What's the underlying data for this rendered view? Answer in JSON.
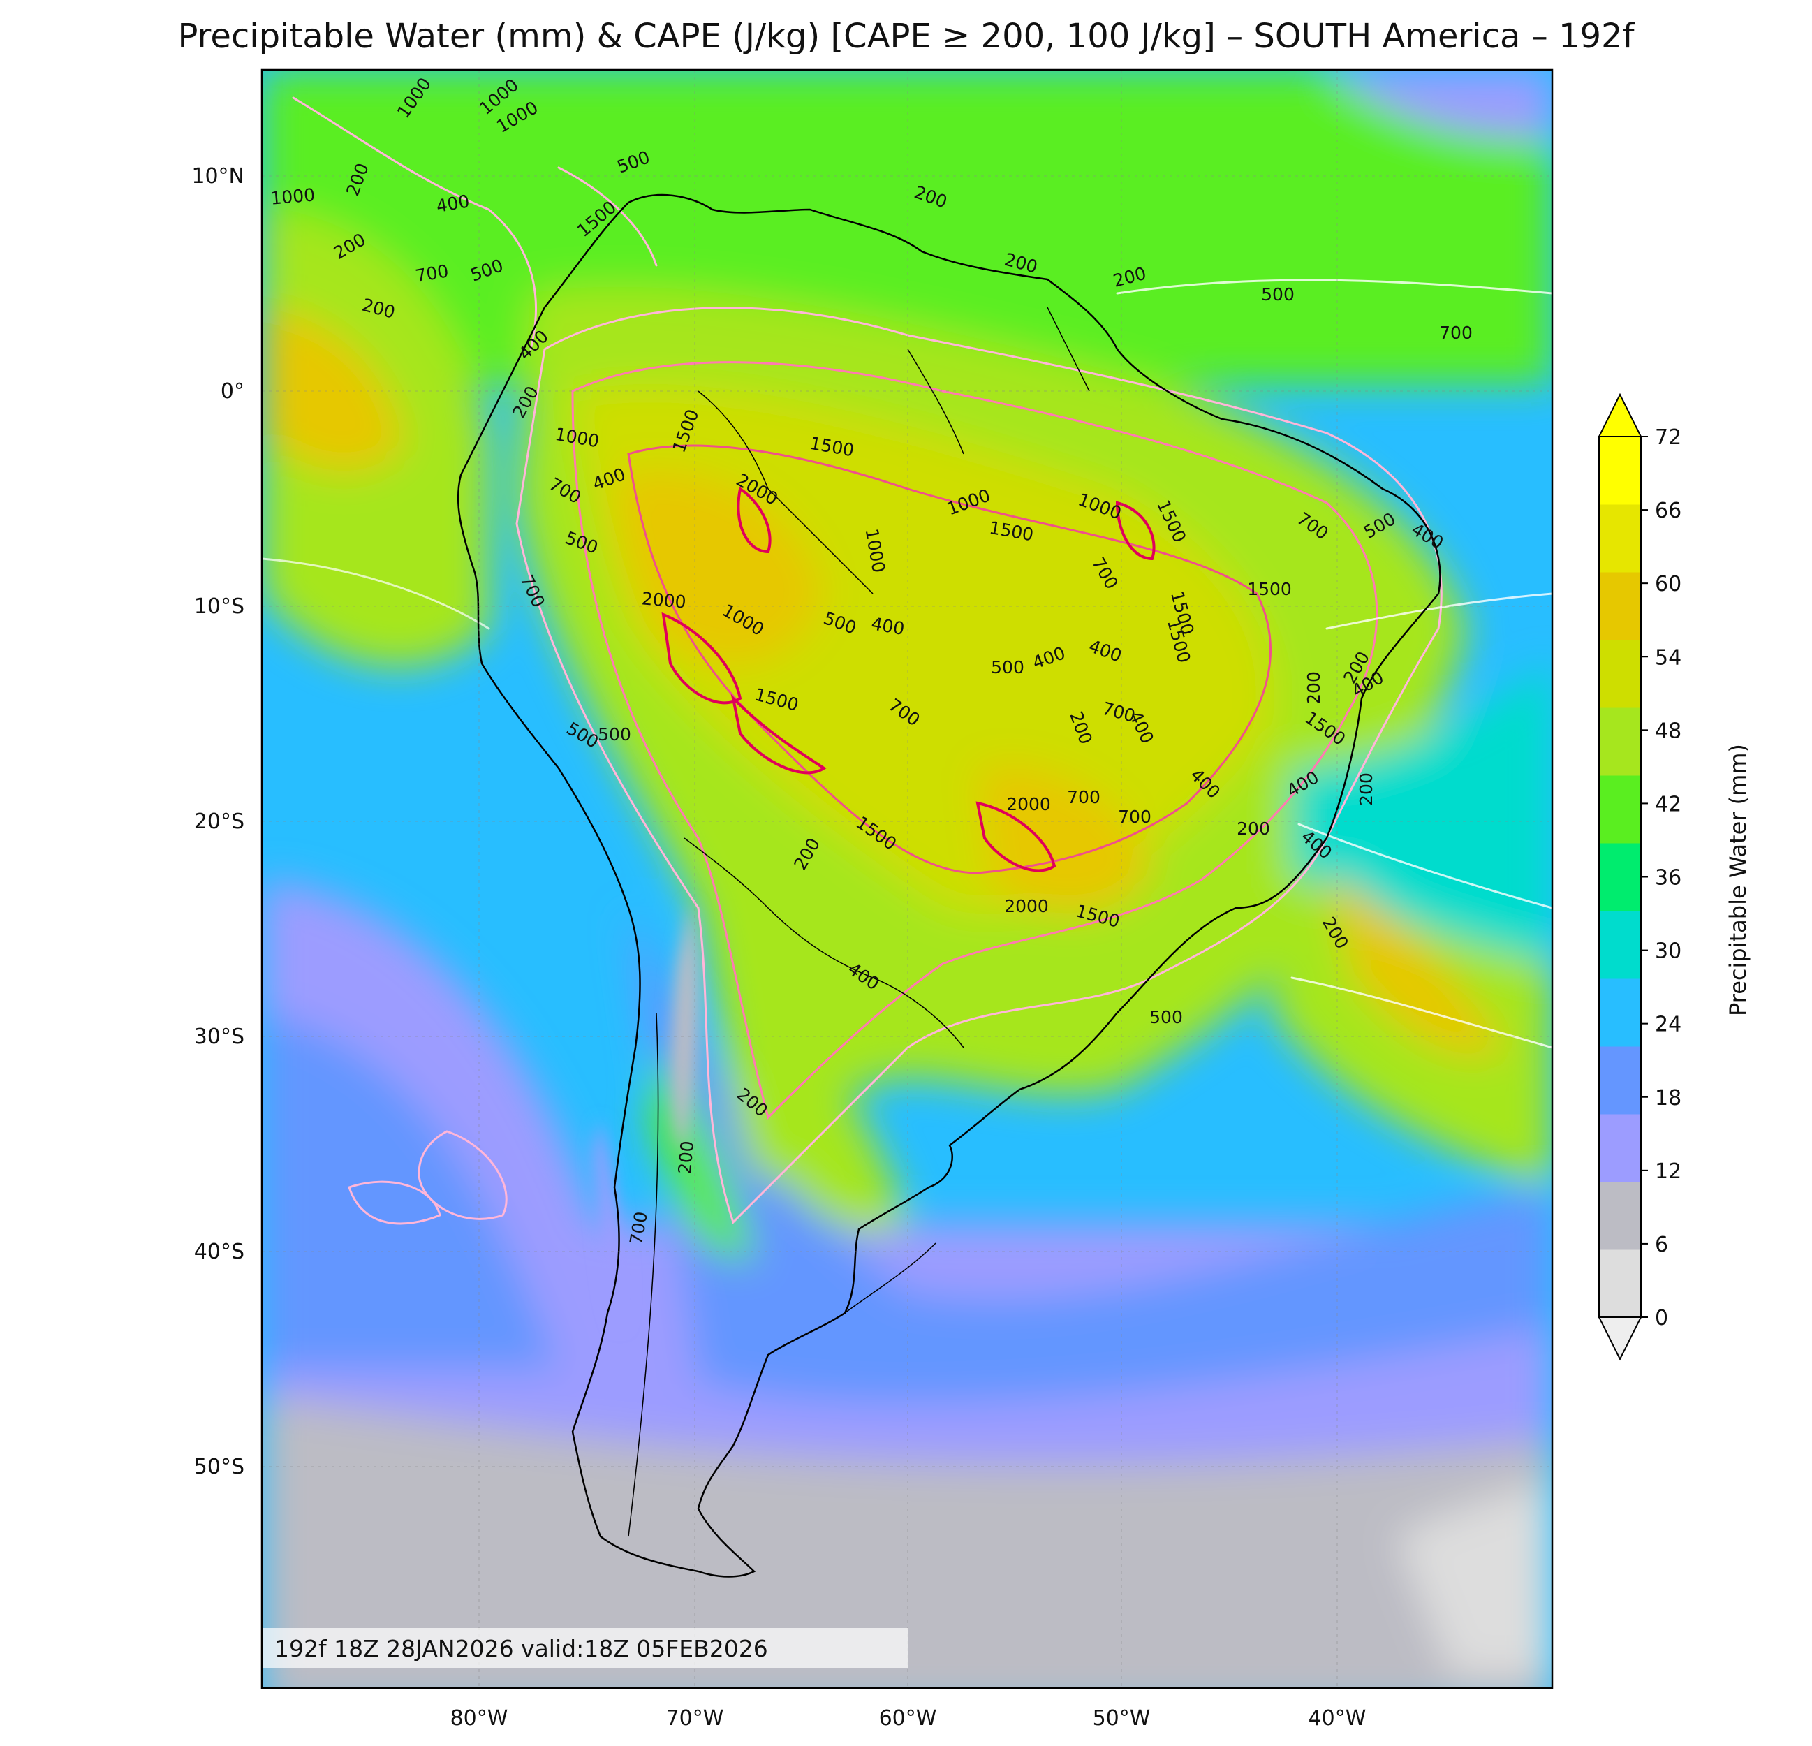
{
  "title": "Precipitable Water (mm) & CAPE (J/kg) [CAPE ≥ 200, 100 J/kg] – SOUTH America – 192f",
  "map": {
    "lat_ticks": [
      "10°N",
      "0°",
      "10°S",
      "20°S",
      "30°S",
      "40°S",
      "50°S"
    ],
    "lon_ticks": [
      "80°W",
      "70°W",
      "60°W",
      "50°W",
      "40°W"
    ],
    "lon_range_deg": [
      -90,
      -30
    ],
    "lat_range_deg": [
      -60,
      15
    ],
    "timestamp": "192f 18Z 28JAN2026 valid:18Z 05FEB2026"
  },
  "colorbar": {
    "label": "Precipitable Water (mm)",
    "ticks": [
      "0",
      "6",
      "12",
      "18",
      "24",
      "30",
      "36",
      "42",
      "48",
      "54",
      "60",
      "66",
      "72"
    ],
    "colors": [
      "#dddddd",
      "#bcbcc4",
      "#9c9cff",
      "#6496ff",
      "#28beff",
      "#00dccd",
      "#00ec6e",
      "#5aee20",
      "#a6e61e",
      "#cede00",
      "#e6c800",
      "#e6e600",
      "#ffff00"
    ],
    "under_color": "#eeeeee",
    "over_color": "#ffff00"
  },
  "cape_labels": [
    {
      "t": "1000"
    },
    {
      "t": "1000"
    },
    {
      "t": "1000"
    },
    {
      "t": "500"
    },
    {
      "t": "200"
    },
    {
      "t": "1000"
    },
    {
      "t": "400"
    },
    {
      "t": "200"
    },
    {
      "t": "1500"
    },
    {
      "t": "200"
    },
    {
      "t": "700"
    },
    {
      "t": "500"
    },
    {
      "t": "200"
    },
    {
      "t": "200"
    },
    {
      "t": "200"
    },
    {
      "t": "500"
    },
    {
      "t": "700"
    },
    {
      "t": "400"
    },
    {
      "t": "200"
    },
    {
      "t": "1000"
    },
    {
      "t": "1500"
    },
    {
      "t": "1500"
    },
    {
      "t": "700"
    },
    {
      "t": "400"
    },
    {
      "t": "2000"
    },
    {
      "t": "1000"
    },
    {
      "t": "1000"
    },
    {
      "t": "1000"
    },
    {
      "t": "1500"
    },
    {
      "t": "1500"
    },
    {
      "t": "700"
    },
    {
      "t": "500"
    },
    {
      "t": "400"
    },
    {
      "t": "500"
    },
    {
      "t": "700"
    },
    {
      "t": "2000"
    },
    {
      "t": "1000"
    },
    {
      "t": "500"
    },
    {
      "t": "400"
    },
    {
      "t": "500"
    },
    {
      "t": "1500"
    },
    {
      "t": "700"
    },
    {
      "t": "1500"
    },
    {
      "t": "1500"
    },
    {
      "t": "700"
    },
    {
      "t": "500"
    },
    {
      "t": "400"
    },
    {
      "t": "2000"
    },
    {
      "t": "700"
    },
    {
      "t": "200"
    },
    {
      "t": "400"
    },
    {
      "t": "1500"
    },
    {
      "t": "700"
    },
    {
      "t": "400"
    },
    {
      "t": "400"
    },
    {
      "t": "200"
    },
    {
      "t": "200"
    },
    {
      "t": "200"
    },
    {
      "t": "200"
    },
    {
      "t": "200"
    },
    {
      "t": "200"
    },
    {
      "t": "200"
    },
    {
      "t": "700"
    },
    {
      "t": "500"
    },
    {
      "t": "400"
    },
    {
      "t": "500"
    },
    {
      "t": "700"
    },
    {
      "t": "400"
    },
    {
      "t": "1500"
    },
    {
      "t": "400"
    },
    {
      "t": "2000"
    },
    {
      "t": "1500"
    },
    {
      "t": "400"
    },
    {
      "t": "200"
    },
    {
      "t": "1500"
    }
  ]
}
